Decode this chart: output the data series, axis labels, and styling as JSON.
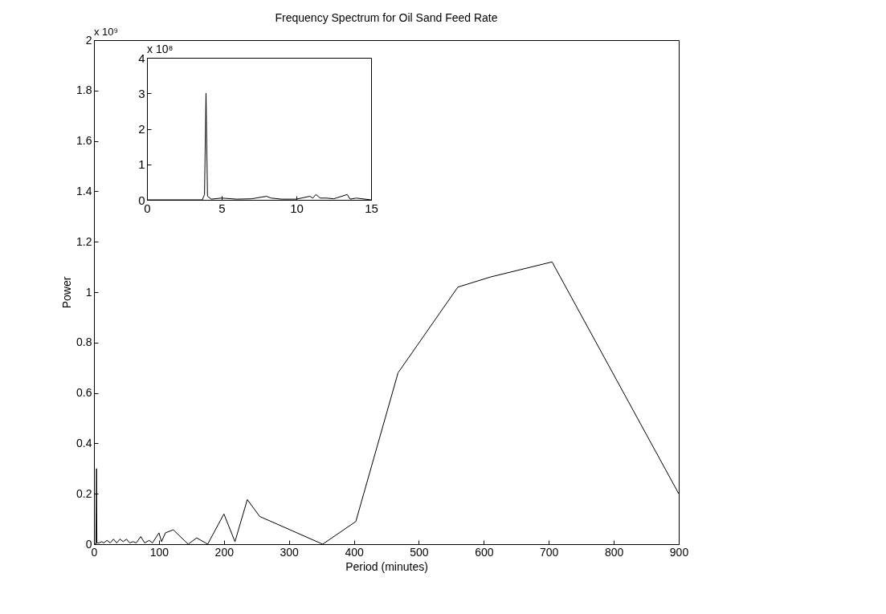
{
  "chart_data": [
    {
      "type": "line",
      "title": "Frequency Spectrum for Oil Sand Feed Rate",
      "xlabel": "Period (minutes)",
      "ylabel": "Power",
      "annotations": [
        "x 10⁹"
      ],
      "x": [
        0,
        3,
        3.9,
        4.5,
        8,
        12,
        15,
        20,
        25,
        30,
        35,
        40,
        45,
        50,
        55,
        60,
        65,
        72,
        78,
        85,
        90,
        100,
        104,
        110,
        122,
        145,
        158,
        175,
        200,
        217,
        236,
        255,
        352,
        403,
        468,
        560,
        610,
        705,
        900
      ],
      "series": [
        {
          "color": "#000000",
          "values": [
            0,
            0,
            0.3,
            0.005,
            0.005,
            0.01,
            0.005,
            0.015,
            0.005,
            0.02,
            0.005,
            0.02,
            0.01,
            0.02,
            0.005,
            0.01,
            0.005,
            0.03,
            0.005,
            0.015,
            0.005,
            0.045,
            0.01,
            0.045,
            0.057,
            0,
            0.025,
            0,
            0.12,
            0.01,
            0.177,
            0.11,
            0,
            0.09,
            0.68,
            1.02,
            1.06,
            1.12,
            0.2
          ]
        }
      ],
      "xlim": [
        0,
        900
      ],
      "xticks": [
        0,
        100,
        200,
        300,
        400,
        500,
        600,
        700,
        800,
        900
      ],
      "ylim": [
        0,
        2
      ],
      "yticks": [
        0,
        0.2,
        0.4,
        0.6,
        0.8,
        1,
        1.2,
        1.4,
        1.6,
        1.8,
        2
      ],
      "grid": false
    },
    {
      "type": "line",
      "annotations": [
        "x 10⁸"
      ],
      "x": [
        0,
        3.7,
        3.85,
        3.95,
        4.05,
        4.3,
        5,
        6,
        7,
        8,
        8.3,
        9,
        10,
        10.9,
        11.1,
        11.3,
        11.6,
        12,
        12.5,
        13.4,
        13.6,
        14,
        15
      ],
      "series": [
        {
          "color": "#000000",
          "values": [
            0,
            0,
            0.15,
            3,
            0.1,
            0.02,
            0.05,
            0.02,
            0.03,
            0.1,
            0.05,
            0.02,
            0.02,
            0.1,
            0.05,
            0.15,
            0.05,
            0.05,
            0.03,
            0.15,
            0.02,
            0.05,
            0
          ]
        }
      ],
      "xlim": [
        0,
        15
      ],
      "xticks": [
        0,
        5,
        10,
        15
      ],
      "ylim": [
        0,
        4
      ],
      "yticks": [
        0,
        1,
        2,
        3,
        4
      ],
      "grid": false
    }
  ]
}
